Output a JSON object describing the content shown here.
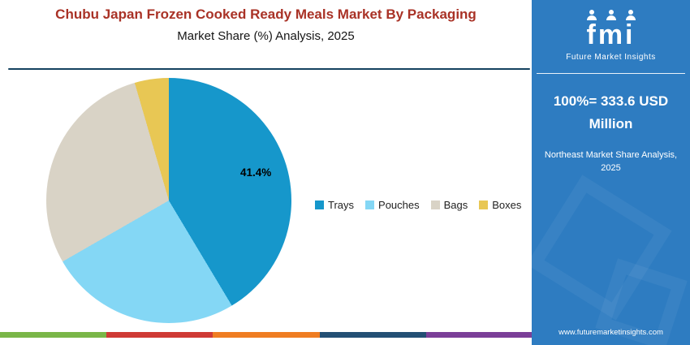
{
  "header": {
    "title": "Chubu Japan Frozen Cooked Ready Meals Market By Packaging",
    "subtitle": "Market Share (%) Analysis, 2025"
  },
  "chart_data": {
    "type": "pie",
    "title": "Chubu Japan Frozen Cooked Ready Meals Market By Packaging - Market Share (%) Analysis, 2025",
    "categories": [
      "Trays",
      "Pouches",
      "Bags",
      "Boxes"
    ],
    "values": [
      41.4,
      25.3,
      28.8,
      4.5
    ],
    "colors": [
      "#1697cb",
      "#84d7f5",
      "#d9d3c6",
      "#e8c754"
    ],
    "data_label": "41.4%",
    "data_label_slice": "Trays",
    "legend_position": "right-middle",
    "start_angle_deg": 0
  },
  "sidebar": {
    "logo_text": "fmi",
    "logo_tagline": "Future Market Insights",
    "stat_line1": "100%= 333.6 USD",
    "stat_line2": "Million",
    "note_line1": "Northeast Market Share Analysis,",
    "note_line2": "2025",
    "website": "www.futuremarketinsights.com"
  },
  "colors": {
    "title_text": "#a93226",
    "separator": "#14425f",
    "sidebar_bg": "#2e7cc1",
    "stripe": [
      "#7ab648",
      "#cf3a35",
      "#ef7d22",
      "#234f74",
      "#7b3f98"
    ]
  }
}
